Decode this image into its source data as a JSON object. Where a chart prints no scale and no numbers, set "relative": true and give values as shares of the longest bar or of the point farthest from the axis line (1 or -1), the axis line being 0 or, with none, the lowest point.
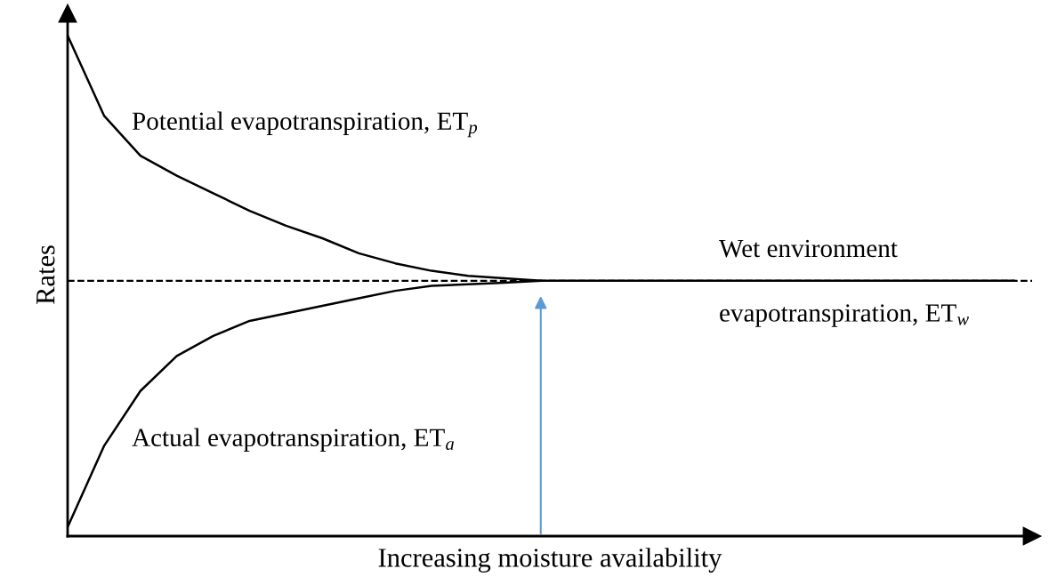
{
  "chart_data": {
    "type": "line",
    "relative": true,
    "xlabel": "Increasing moisture availability",
    "ylabel": "Rates",
    "categories": [
      null,
      null,
      null,
      null,
      null,
      null,
      null,
      null,
      null,
      null,
      null,
      null,
      null,
      null,
      null,
      null,
      null,
      null,
      null,
      null,
      null,
      null,
      null,
      null,
      null,
      null,
      null
    ],
    "series": [
      {
        "color": "#000000",
        "values": [
          1,
          0.84,
          0.76,
          0.72,
          0.685,
          0.65,
          0.62,
          0.595,
          0.565,
          0.545,
          0.53,
          0.52,
          0.515,
          0.51,
          0.51,
          0.51,
          0.51,
          0.51,
          0.51,
          0.51,
          0.51,
          0.51,
          0.51,
          0.51,
          0.51,
          0.51,
          0.51
        ]
      },
      {
        "color": "#000000",
        "values": [
          0.018,
          0.18,
          0.29,
          0.36,
          0.4,
          0.43,
          0.445,
          0.46,
          0.475,
          0.49,
          0.5,
          0.503,
          0.506,
          0.51,
          null,
          null,
          null,
          null,
          null,
          null,
          null,
          null,
          null,
          null,
          null,
          null,
          null
        ]
      }
    ],
    "ref_lines": [
      {
        "axis": "y",
        "value": 0.51,
        "line_style": "dashed",
        "color": "#000000"
      }
    ],
    "annotations": [
      "Potential evapotranspiration, ET$_{p}$",
      "Actual evapotranspiration, ET$_{a}$",
      "Wet environment",
      "evapotranspiration, ET$_{w}$"
    ],
    "marker": "none",
    "line_style": "solid",
    "grid": false,
    "legend": false
  }
}
